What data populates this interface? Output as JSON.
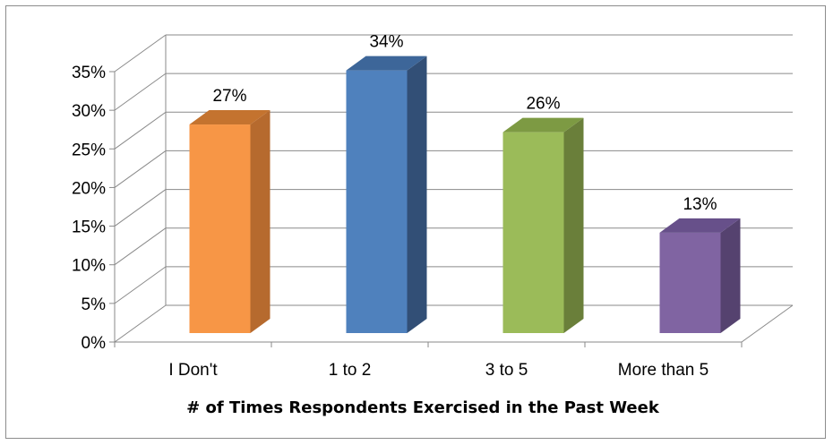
{
  "chart_data": {
    "type": "bar",
    "style": "3d-column",
    "categories": [
      "I Don't",
      "1 to 2",
      "3 to 5",
      "More than 5"
    ],
    "values": [
      27,
      34,
      26,
      13
    ],
    "data_labels": [
      "27%",
      "34%",
      "26%",
      "13%"
    ],
    "title": "",
    "xlabel": "# of Times Respondents Exercised in the Past Week",
    "ylabel": "",
    "ylim": [
      0,
      35
    ],
    "yticks": [
      "0%",
      "5%",
      "10%",
      "15%",
      "20%",
      "25%",
      "30%",
      "35%"
    ],
    "grid": true,
    "legend": "none",
    "colors": [
      "#f79646",
      "#4f81bd",
      "#9bbb59",
      "#8064a2"
    ],
    "side_colors": [
      "#b66a2e",
      "#324f76",
      "#6a7f3a",
      "#55426f"
    ],
    "top_colors": [
      "#c4732f",
      "#3d6699",
      "#7d9a43",
      "#67508a"
    ]
  }
}
